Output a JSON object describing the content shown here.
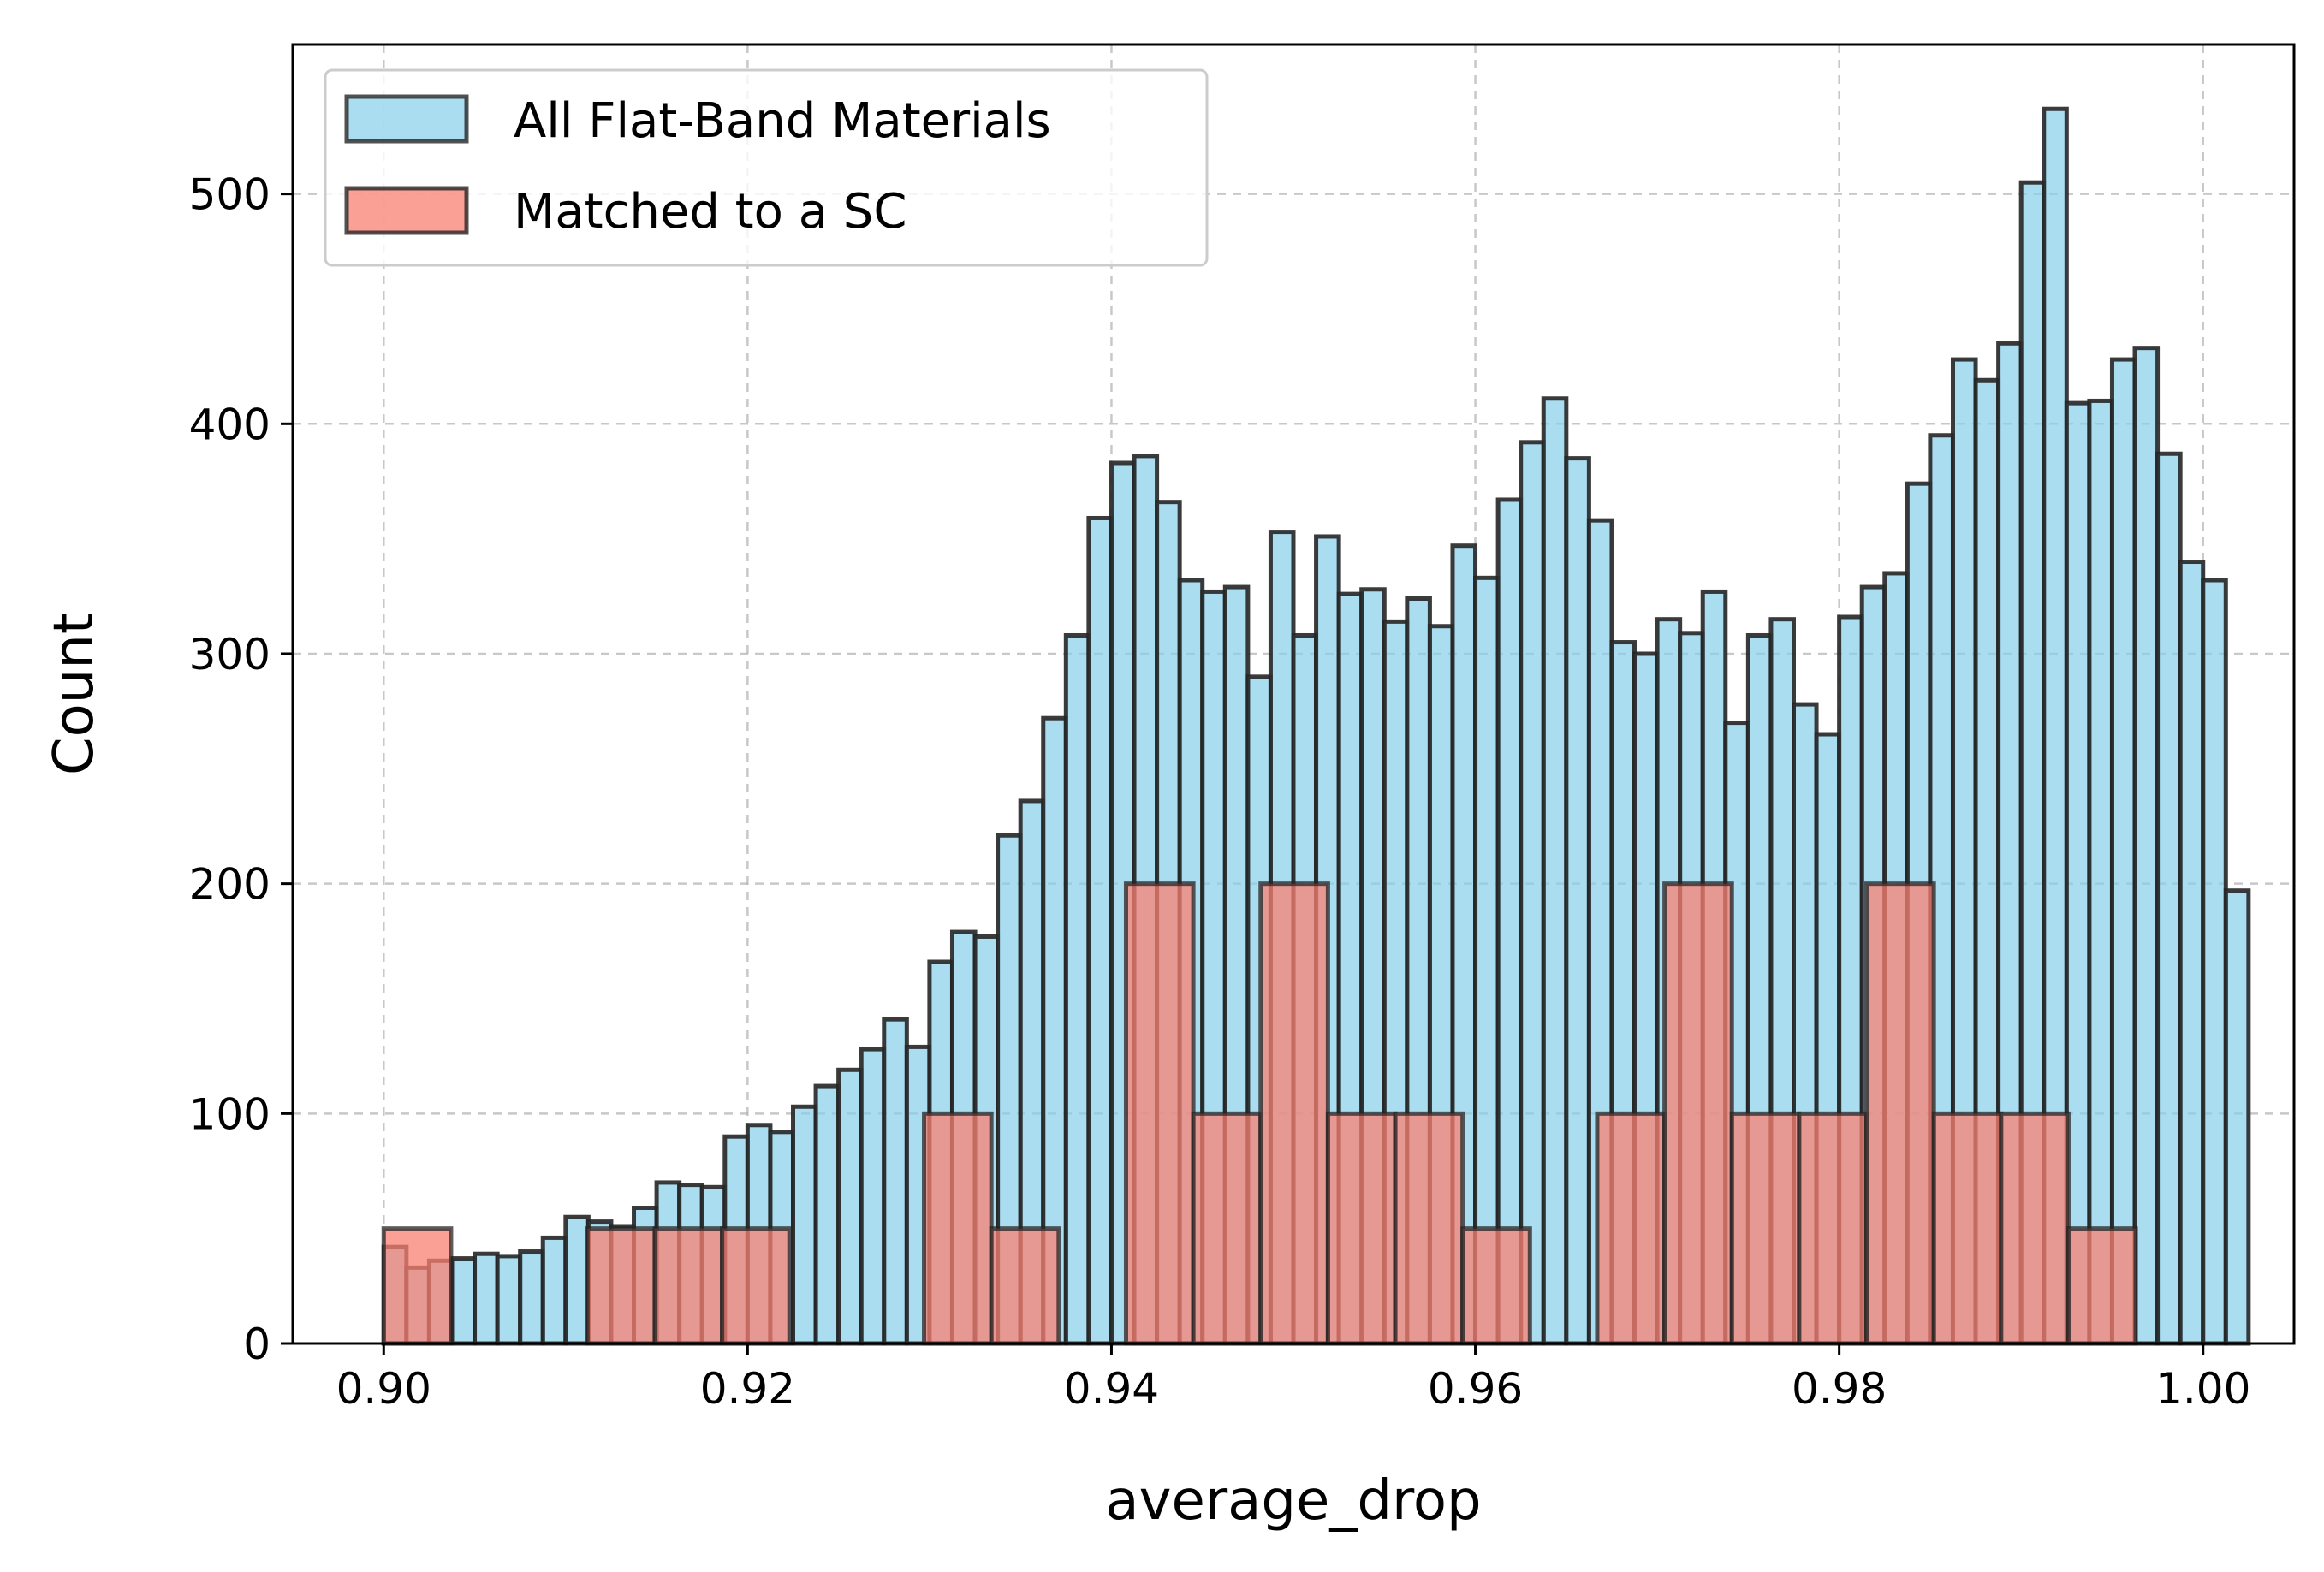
{
  "chart_data": {
    "type": "bar",
    "title": "",
    "xlabel": "average_drop",
    "ylabel": "Count",
    "xlim": [
      0.895,
      1.005
    ],
    "ylim": [
      0,
      565
    ],
    "grid": true,
    "legend_position": "top-left",
    "x_ticks": [
      0.9,
      0.92,
      0.94,
      0.96,
      0.98,
      1.0
    ],
    "x_tick_labels": [
      "0.90",
      "0.92",
      "0.94",
      "0.96",
      "0.98",
      "1.00"
    ],
    "y_ticks": [
      0,
      100,
      200,
      300,
      400,
      500
    ],
    "y_tick_labels": [
      "0",
      "100",
      "200",
      "300",
      "400",
      "500"
    ],
    "series": [
      {
        "name": "All Flat-Band Materials",
        "color": "#87ceeb",
        "edge_color": "#262626",
        "bin_start": 0.9,
        "bin_width": 0.00125,
        "values": [
          42,
          33,
          36,
          37,
          39,
          38,
          40,
          46,
          55,
          53,
          51,
          59,
          70,
          69,
          68,
          90,
          95,
          92,
          103,
          112,
          119,
          128,
          141,
          129,
          166,
          179,
          177,
          221,
          236,
          272,
          308,
          359,
          383,
          386,
          366,
          332,
          327,
          329,
          290,
          353,
          308,
          351,
          326,
          328,
          314,
          324,
          312,
          347,
          333,
          367,
          392,
          411,
          385,
          358,
          305,
          300,
          315,
          309,
          327,
          270,
          308,
          315,
          278,
          265,
          316,
          329,
          335,
          374,
          395,
          428,
          419,
          435,
          505,
          537,
          409,
          410,
          428,
          433,
          387,
          340,
          332,
          197
        ]
      },
      {
        "name": "Matched to a SC",
        "color": "#fa8072",
        "edge_color": "#262626",
        "bins": [
          {
            "start": 0.9,
            "end": 0.9037,
            "value": 50
          },
          {
            "start": 0.9112,
            "end": 0.9149,
            "value": 50
          },
          {
            "start": 0.9149,
            "end": 0.9186,
            "value": 50
          },
          {
            "start": 0.9186,
            "end": 0.9223,
            "value": 50
          },
          {
            "start": 0.9297,
            "end": 0.9334,
            "value": 100
          },
          {
            "start": 0.9334,
            "end": 0.9371,
            "value": 50
          },
          {
            "start": 0.9408,
            "end": 0.9445,
            "value": 200
          },
          {
            "start": 0.9445,
            "end": 0.9482,
            "value": 100
          },
          {
            "start": 0.9482,
            "end": 0.9519,
            "value": 200
          },
          {
            "start": 0.9519,
            "end": 0.9556,
            "value": 100
          },
          {
            "start": 0.9556,
            "end": 0.9593,
            "value": 100
          },
          {
            "start": 0.9593,
            "end": 0.963,
            "value": 50
          },
          {
            "start": 0.9667,
            "end": 0.9704,
            "value": 100
          },
          {
            "start": 0.9704,
            "end": 0.9741,
            "value": 200
          },
          {
            "start": 0.9741,
            "end": 0.9778,
            "value": 100
          },
          {
            "start": 0.9778,
            "end": 0.9815,
            "value": 100
          },
          {
            "start": 0.9815,
            "end": 0.9852,
            "value": 200
          },
          {
            "start": 0.9852,
            "end": 0.9889,
            "value": 100
          },
          {
            "start": 0.9889,
            "end": 0.9926,
            "value": 100
          },
          {
            "start": 0.9926,
            "end": 0.9963,
            "value": 50
          }
        ]
      }
    ]
  }
}
